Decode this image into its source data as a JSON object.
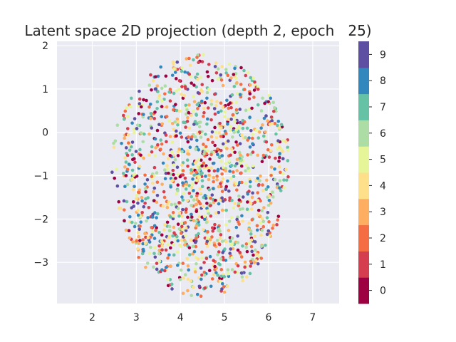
{
  "chart_data": {
    "type": "scatter",
    "title": "Latent space 2D projection (depth 2, epoch   25)",
    "xlabel": "",
    "ylabel": "",
    "xlim": [
      1.2,
      7.6
    ],
    "ylim": [
      -3.95,
      2.1
    ],
    "x_ticks": [
      "2",
      "3",
      "4",
      "5",
      "6",
      "7"
    ],
    "y_ticks": [
      "2",
      "1",
      "0",
      "−1",
      "−2",
      "−3"
    ],
    "grid": true,
    "background": "#eaeaf2",
    "colorbar": {
      "labels": [
        "0",
        "1",
        "2",
        "3",
        "4",
        "5",
        "6",
        "7",
        "8",
        "9"
      ],
      "colors": [
        "#9e0142",
        "#d53e4f",
        "#f46d43",
        "#fdae61",
        "#fee08b",
        "#e6f598",
        "#abdda4",
        "#66c2a5",
        "#3288bd",
        "#5e4fa2"
      ]
    },
    "point_cloud": {
      "description": "about 1400 points forming a roughly elliptical cloud, colored by class 0-9",
      "center_x": 4.45,
      "center_y": -1.0,
      "half_width_x": 2.0,
      "half_height_y": 2.8,
      "count": 1400
    }
  }
}
